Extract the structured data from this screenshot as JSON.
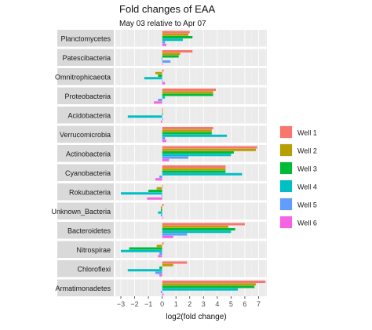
{
  "chart_data": {
    "type": "bar",
    "orientation": "horizontal",
    "faceted": true,
    "title": "Fold changes of EAA",
    "subtitle": "May 03 relative to Apr 07",
    "xlabel": "log2(fold change)",
    "ylabel": "",
    "xlim": [
      -3.4,
      7.6
    ],
    "xticks": [
      -3,
      -2,
      -1,
      0,
      1,
      2,
      3,
      4,
      5,
      6,
      7
    ],
    "xtick_labels": [
      "−3",
      "−2",
      "−1",
      "0",
      "1",
      "2",
      "3",
      "4",
      "5",
      "6",
      "7"
    ],
    "grid": true,
    "legend_position": "right",
    "categories": [
      "Planctomycetes",
      "Patescibacteria",
      "Omnitrophicaeota",
      "Proteobacteria",
      "Acidobacteria",
      "Verrucomicrobia",
      "Actinobacteria",
      "Cyanobacteria",
      "Rokubacteria",
      "Unknown_Bacteria",
      "Bacteroidetes",
      "Nitrospirae",
      "Chloroflexi",
      "Armatimonadetes"
    ],
    "series": [
      {
        "name": "Well 1",
        "color": "#f8766d",
        "values": [
          2.0,
          2.2,
          0.1,
          3.9,
          0.05,
          3.7,
          6.9,
          4.6,
          0.05,
          0.1,
          6.0,
          0.1,
          1.8,
          7.5
        ]
      },
      {
        "name": "Well 2",
        "color": "#b79f00",
        "values": [
          1.9,
          1.3,
          -0.5,
          3.7,
          0.05,
          3.6,
          6.8,
          4.6,
          -0.4,
          -0.1,
          4.8,
          -0.4,
          0.8,
          6.8
        ]
      },
      {
        "name": "Well 3",
        "color": "#00ba38",
        "values": [
          2.2,
          1.2,
          -0.3,
          3.7,
          0.05,
          3.6,
          5.2,
          4.6,
          -1.0,
          -0.1,
          5.3,
          -2.4,
          -0.2,
          6.7
        ]
      },
      {
        "name": "Well 4",
        "color": "#00bfc4",
        "values": [
          1.5,
          -0.05,
          -1.3,
          0.2,
          -2.5,
          4.7,
          5.0,
          5.8,
          -3.0,
          -0.3,
          5.0,
          -3.0,
          -2.5,
          5.5
        ]
      },
      {
        "name": "Well 5",
        "color": "#619cff",
        "values": [
          0.2,
          0.6,
          0.05,
          -0.3,
          0.05,
          0.2,
          1.9,
          -0.2,
          -0.05,
          -0.1,
          1.8,
          -0.2,
          -0.5,
          -0.1
        ]
      },
      {
        "name": "Well 6",
        "color": "#f564e3",
        "values": [
          0.3,
          0.05,
          0.2,
          -0.6,
          -0.1,
          0.3,
          0.5,
          -0.5,
          -1.1,
          0.05,
          0.8,
          -0.3,
          -0.2,
          0.1
        ]
      }
    ]
  }
}
